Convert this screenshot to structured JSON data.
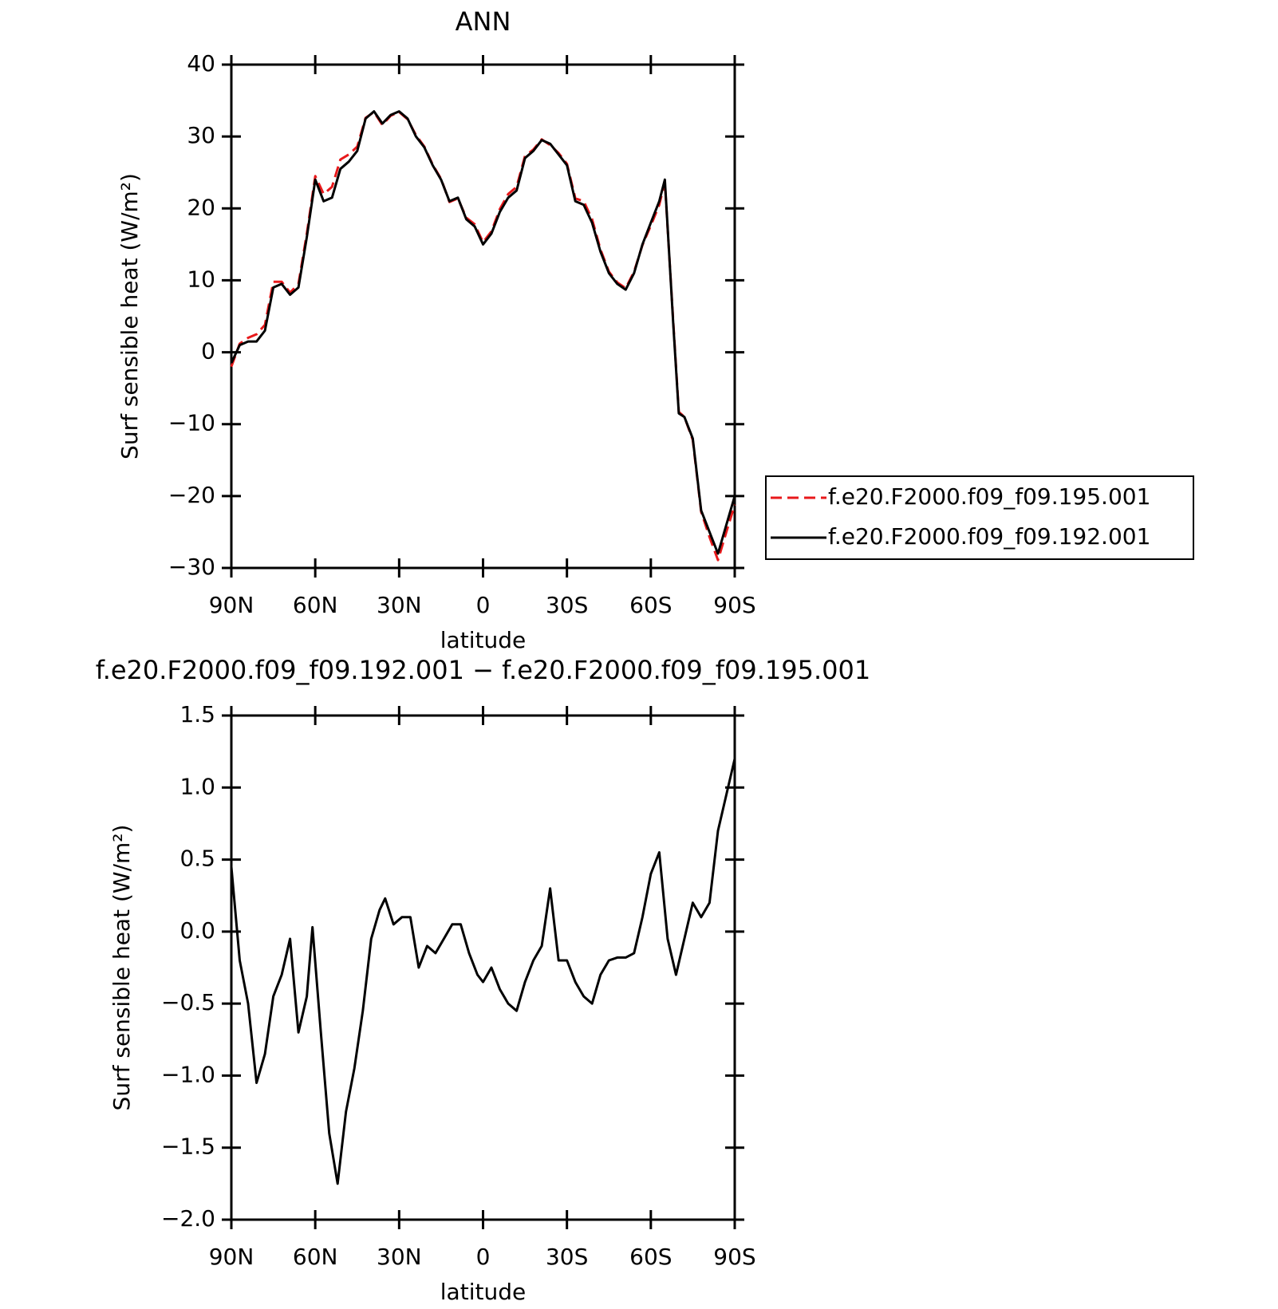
{
  "chart_data": [
    {
      "type": "line",
      "title": "ANN",
      "x_label": "latitude",
      "y_label": "Surf sensible heat (W/m²)",
      "x": [
        90,
        87,
        84,
        81,
        78,
        75,
        72,
        69,
        66,
        63,
        60,
        57,
        54,
        51,
        48,
        45,
        42,
        39,
        36,
        33,
        30,
        27,
        24,
        21,
        18,
        15,
        12,
        9,
        6,
        3,
        0,
        -3,
        -6,
        -9,
        -12,
        -15,
        -18,
        -21,
        -24,
        -27,
        -30,
        -33,
        -36,
        -39,
        -42,
        -45,
        -48,
        -51,
        -54,
        -57,
        -60,
        -63,
        -65,
        -68,
        -70,
        -72,
        -75,
        -78,
        -81,
        -84,
        -87,
        -90
      ],
      "series": [
        {
          "name": "f.e20.F2000.f09_f09.195.001",
          "color": "#e8191b",
          "line_style": "dashed",
          "values": [
            -2,
            1.2,
            2,
            2.5,
            3.8,
            9.8,
            9.8,
            8.3,
            9.5,
            16.5,
            24.5,
            22,
            23,
            26.8,
            27.5,
            28.6,
            32.6,
            33.4,
            31.6,
            32.9,
            33.4,
            32.4,
            30.2,
            28.6,
            26.1,
            24.1,
            20.9,
            21.4,
            18.7,
            17.8,
            15.3,
            16.8,
            19.9,
            22,
            23,
            27.3,
            28.2,
            29.6,
            28.8,
            27.7,
            26.2,
            21.4,
            21,
            18.5,
            14.3,
            11.2,
            9.7,
            8.9,
            11.2,
            14.9,
            17.6,
            20.5,
            23.7,
            4.3,
            -8.3,
            -9,
            -12.2,
            -22.2,
            -25.7,
            -28.9,
            -25,
            -21.2
          ]
        },
        {
          "name": "f.e20.F2000.f09_f09.192.001",
          "color": "#000000",
          "line_style": "solid",
          "values": [
            -1.5,
            1,
            1.5,
            1.5,
            3,
            9,
            9.5,
            8,
            9,
            16,
            24,
            21,
            21.5,
            25.5,
            26.5,
            28,
            32.5,
            33.5,
            31.8,
            33,
            33.5,
            32.5,
            30,
            28.5,
            26,
            24,
            21,
            21.5,
            18.5,
            17.5,
            15,
            16.5,
            19.5,
            21.5,
            22.5,
            27,
            28,
            29.5,
            29,
            27.5,
            26,
            21,
            20.5,
            18,
            14,
            11,
            9.5,
            8.7,
            11,
            15,
            18,
            21,
            24,
            4,
            -8.5,
            -9,
            -12,
            -22,
            -25,
            -28,
            -24,
            -20
          ]
        }
      ],
      "xlim": [
        90,
        -90
      ],
      "xticks": [
        {
          "value": 90,
          "label": "90N"
        },
        {
          "value": 60,
          "label": "60N"
        },
        {
          "value": 30,
          "label": "30N"
        },
        0,
        {
          "value": -30,
          "label": "30S"
        },
        {
          "value": -60,
          "label": "60S"
        },
        {
          "value": -90,
          "label": "90S"
        }
      ],
      "ylim": [
        -30,
        40
      ],
      "yticks": [
        40,
        30,
        20,
        10,
        0,
        {
          "value": -10,
          "label": "−10"
        },
        {
          "value": -20,
          "label": "−20"
        },
        {
          "value": -30,
          "label": "−30"
        }
      ],
      "legend": "right"
    },
    {
      "type": "line",
      "title": "f.e20.F2000.f09_f09.192.001 − f.e20.F2000.f09_f09.195.001",
      "x_label": "latitude",
      "y_label": "Surf sensible heat (W/m²)",
      "x": [
        90,
        87,
        84,
        81,
        78,
        75,
        72,
        69,
        66,
        63,
        61,
        58,
        55,
        52,
        49,
        46,
        43,
        40,
        37,
        35,
        32,
        29,
        26,
        23,
        20,
        17,
        14,
        11,
        8,
        5,
        2,
        0,
        -3,
        -6,
        -9,
        -12,
        -15,
        -18,
        -21,
        -24,
        -27,
        -30,
        -33,
        -36,
        -39,
        -42,
        -45,
        -48,
        -51,
        -54,
        -57,
        -60,
        -63,
        -66,
        -69,
        -72,
        -75,
        -78,
        -81,
        -84,
        -87,
        -90
      ],
      "color": "#000000",
      "values": [
        0.45,
        -0.2,
        -0.5,
        -1.05,
        -0.85,
        -0.45,
        -0.3,
        -0.05,
        -0.7,
        -0.45,
        0.03,
        -0.7,
        -1.4,
        -1.75,
        -1.25,
        -0.95,
        -0.55,
        -0.05,
        0.15,
        0.23,
        0.05,
        0.1,
        0.1,
        -0.25,
        -0.1,
        -0.15,
        -0.05,
        0.05,
        0.05,
        -0.15,
        -0.3,
        -0.35,
        -0.25,
        -0.4,
        -0.5,
        -0.55,
        -0.35,
        -0.2,
        -0.1,
        0.3,
        -0.2,
        -0.2,
        -0.35,
        -0.45,
        -0.5,
        -0.3,
        -0.2,
        -0.18,
        -0.18,
        -0.15,
        0.1,
        0.4,
        0.55,
        -0.05,
        -0.3,
        -0.05,
        0.2,
        0.1,
        0.2,
        0.7,
        0.95,
        1.2
      ],
      "xlim": [
        90,
        -90
      ],
      "xticks": [
        {
          "value": 90,
          "label": "90N"
        },
        {
          "value": 60,
          "label": "60N"
        },
        {
          "value": 30,
          "label": "30N"
        },
        0,
        {
          "value": -30,
          "label": "30S"
        },
        {
          "value": -60,
          "label": "60S"
        },
        {
          "value": -90,
          "label": "90S"
        }
      ],
      "ylim": [
        -2.0,
        1.5
      ],
      "yticks": [
        1.5,
        {
          "value": 1.0,
          "label": "1.0"
        },
        0.5,
        {
          "value": 0.0,
          "label": "0.0"
        },
        {
          "value": -0.5,
          "label": "−0.5"
        },
        {
          "value": -1.0,
          "label": "−1.0"
        },
        {
          "value": -1.5,
          "label": "−1.5"
        },
        {
          "value": -2.0,
          "label": "−2.0"
        }
      ]
    }
  ]
}
